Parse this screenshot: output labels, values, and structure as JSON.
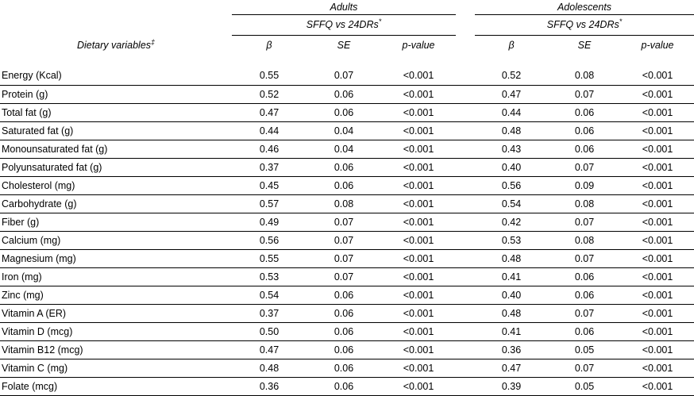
{
  "table": {
    "corner_header": "Dietary variables",
    "corner_header_sup": "‡",
    "groups": [
      {
        "label": "Adults",
        "subheader": "SFFQ vs 24DRs",
        "subheader_sup": "*"
      },
      {
        "label": "Adolescents",
        "subheader": "SFFQ vs 24DRs",
        "subheader_sup": "*"
      }
    ],
    "columns": [
      "β",
      "SE",
      "p-value"
    ],
    "rows": [
      {
        "label": "Energy (Kcal)",
        "adults": {
          "beta": "0.55",
          "se": "0.07",
          "p": "<0.001"
        },
        "adolescents": {
          "beta": "0.52",
          "se": "0.08",
          "p": "<0.001"
        }
      },
      {
        "label": "Protein (g)",
        "adults": {
          "beta": "0.52",
          "se": "0.06",
          "p": "<0.001"
        },
        "adolescents": {
          "beta": "0.47",
          "se": "0.07",
          "p": "<0.001"
        }
      },
      {
        "label": "Total fat (g)",
        "adults": {
          "beta": "0.47",
          "se": "0.06",
          "p": "<0.001"
        },
        "adolescents": {
          "beta": "0.44",
          "se": "0.06",
          "p": "<0.001"
        }
      },
      {
        "label": "Saturated fat (g)",
        "adults": {
          "beta": "0.44",
          "se": "0.04",
          "p": "<0.001"
        },
        "adolescents": {
          "beta": "0.48",
          "se": "0.06",
          "p": "<0.001"
        }
      },
      {
        "label": "Monounsaturated fat (g)",
        "adults": {
          "beta": "0.46",
          "se": "0.04",
          "p": "<0.001"
        },
        "adolescents": {
          "beta": "0.43",
          "se": "0.06",
          "p": "<0.001"
        }
      },
      {
        "label": "Polyunsaturated fat (g)",
        "adults": {
          "beta": "0.37",
          "se": "0.06",
          "p": "<0.001"
        },
        "adolescents": {
          "beta": "0.40",
          "se": "0.07",
          "p": "<0.001"
        }
      },
      {
        "label": "Cholesterol (mg)",
        "adults": {
          "beta": "0.45",
          "se": "0.06",
          "p": "<0.001"
        },
        "adolescents": {
          "beta": "0.56",
          "se": "0.09",
          "p": "<0.001"
        }
      },
      {
        "label": "Carbohydrate (g)",
        "adults": {
          "beta": "0.57",
          "se": "0.08",
          "p": "<0.001"
        },
        "adolescents": {
          "beta": "0.54",
          "se": "0.08",
          "p": "<0.001"
        }
      },
      {
        "label": "Fiber (g)",
        "adults": {
          "beta": "0.49",
          "se": "0.07",
          "p": "<0.001"
        },
        "adolescents": {
          "beta": "0.42",
          "se": "0.07",
          "p": "<0.001"
        }
      },
      {
        "label": "Calcium (mg)",
        "adults": {
          "beta": "0.56",
          "se": "0.07",
          "p": "<0.001"
        },
        "adolescents": {
          "beta": "0.53",
          "se": "0.08",
          "p": "<0.001"
        }
      },
      {
        "label": "Magnesium (mg)",
        "adults": {
          "beta": "0.55",
          "se": "0.07",
          "p": "<0.001"
        },
        "adolescents": {
          "beta": "0.48",
          "se": "0.07",
          "p": "<0.001"
        }
      },
      {
        "label": "Iron (mg)",
        "adults": {
          "beta": "0.53",
          "se": "0.07",
          "p": "<0.001"
        },
        "adolescents": {
          "beta": "0.41",
          "se": "0.06",
          "p": "<0.001"
        }
      },
      {
        "label": "Zinc (mg)",
        "adults": {
          "beta": "0.54",
          "se": "0.06",
          "p": "<0.001"
        },
        "adolescents": {
          "beta": "0.40",
          "se": "0.06",
          "p": "<0.001"
        }
      },
      {
        "label": "Vitamin A (ER)",
        "adults": {
          "beta": "0.37",
          "se": "0.06",
          "p": "<0.001"
        },
        "adolescents": {
          "beta": "0.48",
          "se": "0.07",
          "p": "<0.001"
        }
      },
      {
        "label": "Vitamin D (mcg)",
        "adults": {
          "beta": "0.50",
          "se": "0.06",
          "p": "<0.001"
        },
        "adolescents": {
          "beta": "0.41",
          "se": "0.06",
          "p": "<0.001"
        }
      },
      {
        "label": "Vitamin B12 (mcg)",
        "adults": {
          "beta": "0.47",
          "se": "0.06",
          "p": "<0.001"
        },
        "adolescents": {
          "beta": "0.36",
          "se": "0.05",
          "p": "<0.001"
        }
      },
      {
        "label": "Vitamin C (mg)",
        "adults": {
          "beta": "0.48",
          "se": "0.06",
          "p": "<0.001"
        },
        "adolescents": {
          "beta": "0.47",
          "se": "0.07",
          "p": "<0.001"
        }
      },
      {
        "label": "Folate (mcg)",
        "adults": {
          "beta": "0.36",
          "se": "0.06",
          "p": "<0.001"
        },
        "adolescents": {
          "beta": "0.39",
          "se": "0.05",
          "p": "<0.001"
        }
      }
    ]
  }
}
